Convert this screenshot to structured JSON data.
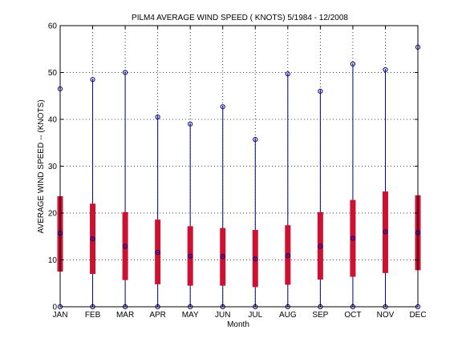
{
  "chart_data": {
    "type": "box",
    "title": "PILM4  AVERAGE WIND SPEED ( KNOTS) 5/1984 - 12/2008",
    "xlabel": "Month",
    "ylabel": "AVERAGE WIND SPEED -- (KNOTS)",
    "categories": [
      "JAN",
      "FEB",
      "MAR",
      "APR",
      "MAY",
      "JUN",
      "JUL",
      "AUG",
      "SEP",
      "OCT",
      "NOV",
      "DEC"
    ],
    "ylim": [
      0,
      60
    ],
    "yticks": [
      0,
      10,
      20,
      30,
      40,
      50,
      60
    ],
    "grid": true,
    "series": [
      {
        "min": [
          0,
          0,
          0,
          0,
          0,
          0,
          0,
          0,
          0,
          0,
          0,
          0
        ],
        "max": [
          46.5,
          48.5,
          50.0,
          40.5,
          39.0,
          42.7,
          35.7,
          49.7,
          46.0,
          51.8,
          50.6,
          55.4
        ],
        "box_low": [
          7.5,
          7.0,
          5.7,
          4.8,
          4.5,
          4.5,
          4.2,
          4.7,
          5.8,
          6.4,
          7.2,
          7.8
        ],
        "box_high": [
          23.6,
          22.0,
          20.2,
          18.6,
          17.2,
          16.8,
          16.4,
          17.4,
          20.2,
          22.8,
          24.6,
          23.8
        ],
        "mean": [
          15.7,
          14.5,
          12.9,
          11.6,
          10.8,
          10.7,
          10.2,
          10.9,
          12.9,
          14.6,
          16.0,
          15.8
        ]
      }
    ],
    "colors": {
      "whisker": "#00008b",
      "box": "#cc1133",
      "marker": "#00008b"
    }
  }
}
